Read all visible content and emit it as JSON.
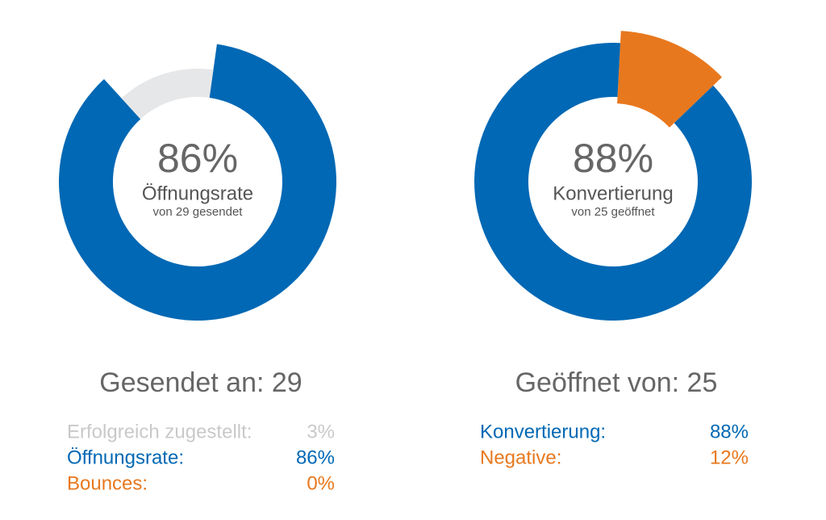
{
  "chart_data": [
    {
      "type": "donut",
      "values": [
        86,
        14
      ],
      "colors": [
        "#0068b4",
        "#e6e7e9"
      ],
      "center": {
        "value": 86,
        "label": "86%",
        "title": "Öffnungsrate",
        "subtitle": "von 29 gesendet"
      },
      "summary": "Gesendet an: 29",
      "legend": [
        {
          "name": "Erfolgreich zugestellt:",
          "value": 3,
          "value_label": "3%",
          "color": "#c9c9c9"
        },
        {
          "name": "Öffnungsrate:",
          "value": 86,
          "value_label": "86%",
          "color": "#0068b4"
        },
        {
          "name": "Bounces:",
          "value": 0,
          "value_label": "0%",
          "color": "#e8781e"
        }
      ]
    },
    {
      "type": "donut",
      "values": [
        12,
        88
      ],
      "colors": [
        "#e8781e",
        "#0068b4"
      ],
      "center": {
        "value": 88,
        "label": "88%",
        "title": "Konvertierung",
        "subtitle": "von 25 geöffnet"
      },
      "summary": "Geöffnet von: 25",
      "legend": [
        {
          "name": "Konvertierung:",
          "value": 88,
          "value_label": "88%",
          "color": "#0068b4"
        },
        {
          "name": "Negative:",
          "value": 12,
          "value_label": "12%",
          "color": "#e8781e"
        }
      ]
    }
  ]
}
